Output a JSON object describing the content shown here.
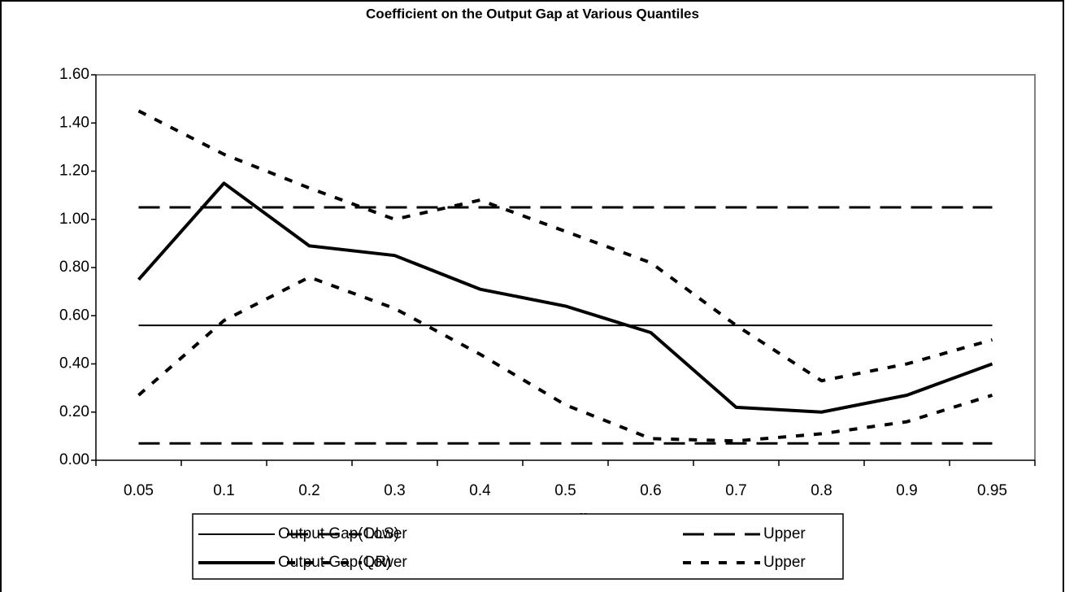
{
  "chart_data": {
    "type": "line",
    "title": "Coefficient on the Output Gap at Various Quantiles",
    "x_label": "Quantile",
    "categories": [
      "0.05",
      "0.1",
      "0.2",
      "0.3",
      "0.4",
      "0.5",
      "0.6",
      "0.7",
      "0.8",
      "0.9",
      "0.95"
    ],
    "ylim": [
      0,
      1.6
    ],
    "yticks": [
      {
        "value": 0,
        "label": "0.00"
      },
      {
        "value": 0.2,
        "label": "0.20"
      },
      {
        "value": 0.4,
        "label": "0.40"
      },
      {
        "value": 0.6,
        "label": "0.60"
      },
      {
        "value": 0.8,
        "label": "0.80"
      },
      {
        "value": 1.0,
        "label": "1.00"
      },
      {
        "value": 1.2,
        "label": "1.20"
      },
      {
        "value": 1.4,
        "label": "1.40"
      },
      {
        "value": 1.6,
        "label": "1.60"
      }
    ],
    "legend": "bottom",
    "series": [
      {
        "name": "Output Gap(OLS)",
        "color": "#000000",
        "line_style": "solid",
        "line_width": 2,
        "values": [
          0.56,
          0.56,
          0.56,
          0.56,
          0.56,
          0.56,
          0.56,
          0.56,
          0.56,
          0.56,
          0.56
        ]
      },
      {
        "name": "Lower",
        "color": "#000000",
        "line_style": "long-dash",
        "line_width": 3,
        "values": [
          0.07,
          0.07,
          0.07,
          0.07,
          0.07,
          0.07,
          0.07,
          0.07,
          0.07,
          0.07,
          0.07
        ]
      },
      {
        "name": "Upper",
        "color": "#000000",
        "line_style": "long-dash",
        "line_width": 3,
        "values": [
          1.05,
          1.05,
          1.05,
          1.05,
          1.05,
          1.05,
          1.05,
          1.05,
          1.05,
          1.05,
          1.05
        ]
      },
      {
        "name": "Output Gap(QR)",
        "color": "#000000",
        "line_style": "solid",
        "line_width": 4,
        "values": [
          0.75,
          1.15,
          0.89,
          0.85,
          0.71,
          0.64,
          0.53,
          0.22,
          0.2,
          0.27,
          0.4
        ]
      },
      {
        "name": "Lower",
        "color": "#000000",
        "line_style": "short-dash",
        "line_width": 4,
        "values": [
          0.27,
          0.58,
          0.76,
          0.63,
          0.44,
          0.23,
          0.09,
          0.08,
          0.11,
          0.16,
          0.27
        ]
      },
      {
        "name": "Upper",
        "color": "#000000",
        "line_style": "short-dash",
        "line_width": 4,
        "values": [
          1.45,
          1.27,
          1.13,
          1.0,
          1.08,
          0.95,
          0.82,
          0.56,
          0.33,
          0.4,
          0.5
        ]
      }
    ]
  }
}
